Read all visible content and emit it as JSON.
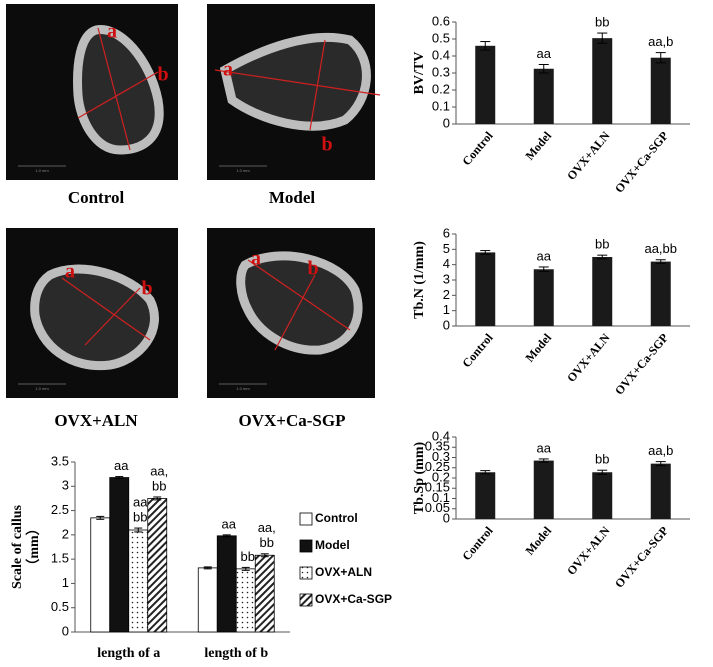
{
  "images": [
    {
      "label": "Control",
      "markers": [
        "a",
        "b"
      ]
    },
    {
      "label": "Model",
      "markers": [
        "a",
        "b"
      ]
    },
    {
      "label": "OVX+ALN",
      "markers": [
        "a",
        "b"
      ]
    },
    {
      "label": "OVX+Ca-SGP",
      "markers": [
        "a",
        "b"
      ]
    }
  ],
  "scale_bar_label": "1.0 mm",
  "chart_data": [
    {
      "type": "bar",
      "y_label": "BV/TV",
      "categories": [
        "Control",
        "Model",
        "OVX+ALN",
        "OVX+Ca-SGP"
      ],
      "values": [
        0.46,
        0.325,
        0.505,
        0.39
      ],
      "errors": [
        0.025,
        0.025,
        0.03,
        0.03
      ],
      "annotations": [
        null,
        "aa",
        "bb",
        "aa,b"
      ],
      "color": "#1a1a1a",
      "ylim": [
        0,
        0.6
      ],
      "yticks": [
        0,
        0.1,
        0.2,
        0.3,
        0.4,
        0.5,
        0.6
      ]
    },
    {
      "type": "bar",
      "y_label": "Tb.N (1/mm)",
      "categories": [
        "Control",
        "Model",
        "OVX+ALN",
        "OVX+Ca-SGP"
      ],
      "values": [
        4.8,
        3.7,
        4.5,
        4.2
      ],
      "errors": [
        0.12,
        0.15,
        0.12,
        0.12
      ],
      "annotations": [
        null,
        "aa",
        "bb",
        "aa,bb"
      ],
      "color": "#1a1a1a",
      "ylim": [
        0,
        6
      ],
      "yticks": [
        0,
        1,
        2,
        3,
        4,
        5,
        6
      ]
    },
    {
      "type": "bar",
      "y_label": "Tb.Sp (mm)",
      "categories": [
        "Control",
        "Model",
        "OVX+ALN",
        "OVX+Ca-SGP"
      ],
      "values": [
        0.228,
        0.285,
        0.228,
        0.27
      ],
      "errors": [
        0.008,
        0.008,
        0.01,
        0.01
      ],
      "annotations": [
        null,
        "aa",
        "bb",
        "aa,b"
      ],
      "color": "#1a1a1a",
      "ylim": [
        0,
        0.4
      ],
      "yticks": [
        0,
        0.05,
        0.1,
        0.15,
        0.2,
        0.25,
        0.3,
        0.35,
        0.4
      ]
    },
    {
      "type": "grouped_bar",
      "y_label": "Scale of callus",
      "y_unit": "（mm）",
      "categories": [
        "length of a",
        "length of b"
      ],
      "ylim": [
        0,
        3.5
      ],
      "yticks": [
        0,
        0.5,
        1,
        1.5,
        2,
        2.5,
        3,
        3.5
      ],
      "series": [
        {
          "name": "Control",
          "color": "#ffffff",
          "pattern": "none",
          "values": [
            2.35,
            1.32
          ],
          "errors": [
            0.03,
            0.02
          ],
          "annotations": [
            [],
            []
          ]
        },
        {
          "name": "Model",
          "color": "#111111",
          "pattern": "none",
          "values": [
            3.18,
            1.98
          ],
          "errors": [
            0.02,
            0.02
          ],
          "annotations": [
            [
              "aa"
            ],
            [
              "aa"
            ]
          ]
        },
        {
          "name": "OVX+ALN",
          "color": "#ffffff",
          "pattern": "dots",
          "values": [
            2.1,
            1.3
          ],
          "errors": [
            0.04,
            0.03
          ],
          "annotations": [
            [
              "aa",
              "bb"
            ],
            [
              "bb"
            ]
          ]
        },
        {
          "name": "OVX+Ca-SGP",
          "color": "#ffffff",
          "pattern": "hatch",
          "values": [
            2.75,
            1.58
          ],
          "errors": [
            0.03,
            0.03
          ],
          "annotations": [
            [
              "aa,",
              "bb"
            ],
            [
              "aa,",
              "bb"
            ]
          ]
        }
      ]
    }
  ]
}
